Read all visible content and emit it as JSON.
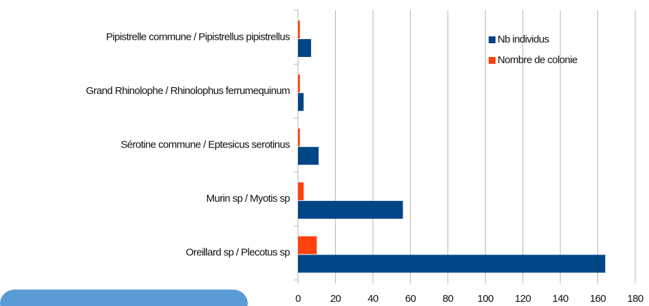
{
  "chart_data": {
    "type": "bar",
    "orientation": "horizontal",
    "categories": [
      "Pipistrelle commune / Pipistrellus pipistrellus",
      "Grand Rhinolophe / Rhinolophus ferrumequinum",
      "Sérotine commune / Eptesicus serotinus",
      "Murin sp / Myotis sp",
      "Oreillard sp / Plecotus sp"
    ],
    "series": [
      {
        "name": "Nb individus",
        "color": "#004586",
        "values": [
          7,
          3,
          11,
          56,
          164
        ]
      },
      {
        "name": "Nombre de colonie",
        "color": "#ff420e",
        "values": [
          1,
          1,
          1,
          3,
          10
        ]
      }
    ],
    "xlim": [
      0,
      180
    ],
    "xticks": [
      0,
      20,
      40,
      60,
      80,
      100,
      120,
      140,
      160,
      180
    ],
    "grid": true,
    "legend": "upper right"
  }
}
